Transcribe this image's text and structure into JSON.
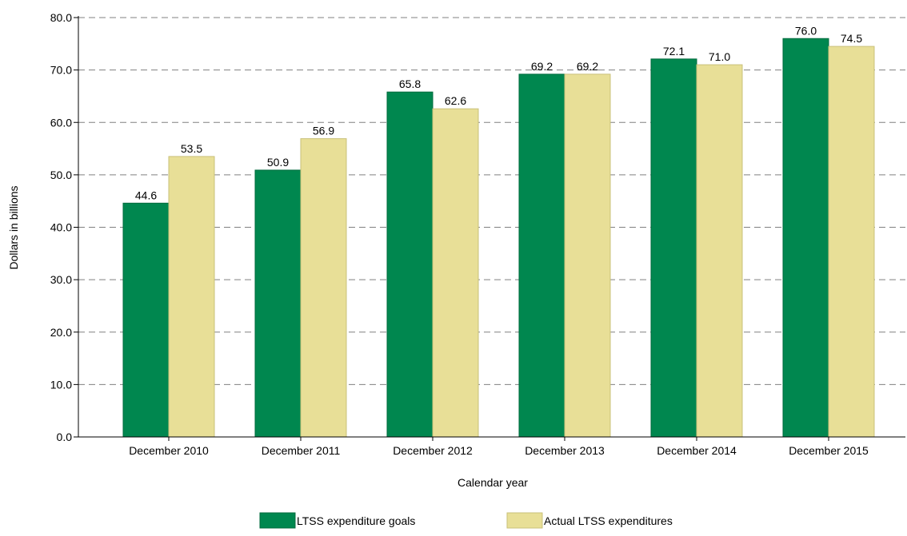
{
  "chart_data": {
    "type": "bar",
    "categories": [
      "December 2010",
      "December 2011",
      "December 2012",
      "December 2013",
      "December 2014",
      "December 2015"
    ],
    "series": [
      {
        "name": "LTSS expenditure goals",
        "values": [
          44.6,
          50.9,
          65.8,
          69.2,
          72.1,
          76.0
        ],
        "labels": [
          "44.6",
          "50.9",
          "65.8",
          "69.2",
          "72.1",
          "76.0"
        ],
        "color": "#00874f"
      },
      {
        "name": "Actual LTSS expenditures",
        "values": [
          53.5,
          56.9,
          62.6,
          69.2,
          71.0,
          74.5
        ],
        "labels": [
          "53.5",
          "56.9",
          "62.6",
          "69.2",
          "71.0",
          "74.5"
        ],
        "color": "#e8df97"
      }
    ],
    "xlabel": "Calendar year",
    "ylabel": "Dollars in billions",
    "ylim": [
      0,
      80
    ],
    "yticks": [
      0,
      10,
      20,
      30,
      40,
      50,
      60,
      70,
      80
    ],
    "ytick_labels": [
      "0.0",
      "10.0",
      "20.0",
      "30.0",
      "40.0",
      "50.0",
      "60.0",
      "70.0",
      "80.0"
    ],
    "grid": true,
    "grid_style": "dashed",
    "legend_position": "bottom"
  }
}
